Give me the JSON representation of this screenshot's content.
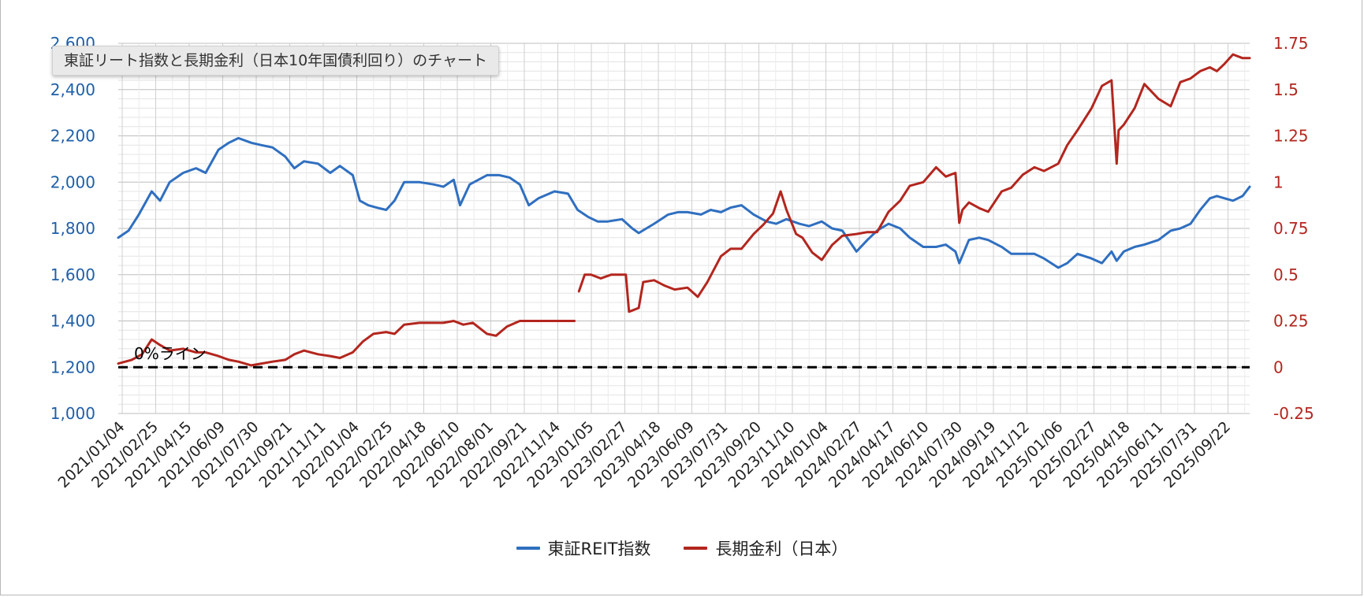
{
  "tooltip": "東証リート指数と長期金利（日本10年国債利回り）のチャート",
  "annotation": "0%ライン",
  "colors": {
    "reit": "#2f6fc0",
    "jgb": "#b3261e",
    "grid": "#d6d6d6",
    "zero": "#000000"
  },
  "chart_data": {
    "type": "line",
    "dual_axis": true,
    "grid": true,
    "legend_position": "bottom",
    "x_ticks": [
      "2021/01/04",
      "2021/02/25",
      "2021/04/15",
      "2021/06/09",
      "2021/07/30",
      "2021/09/21",
      "2021/11/11",
      "2022/01/04",
      "2022/02/25",
      "2022/04/18",
      "2022/06/10",
      "2022/08/01",
      "2022/09/21",
      "2022/11/14",
      "2023/01/05",
      "2023/02/27",
      "2023/04/18",
      "2023/06/09",
      "2023/07/31",
      "2023/09/20",
      "2023/11/10",
      "2024/01/04",
      "2024/02/27",
      "2024/04/17",
      "2024/06/10",
      "2024/07/30",
      "2024/09/19",
      "2024/11/12",
      "2025/01/06",
      "2025/02/27",
      "2025/04/18",
      "2025/06/11",
      "2025/07/31",
      "2025/09/22"
    ],
    "x_range": [
      "2021/01/04",
      "2025/10/31"
    ],
    "y_left": {
      "min": 1000,
      "max": 2600,
      "ticks": [
        "1,000",
        "1,200",
        "1,400",
        "1,600",
        "1,800",
        "2,000",
        "2,200",
        "2,400",
        "2,600"
      ]
    },
    "y_right": {
      "min": -0.25,
      "max": 1.75,
      "ticks": [
        "-0.25",
        "0",
        "0.25",
        "0.5",
        "0.75",
        "1",
        "1.25",
        "1.5",
        "1.75"
      ]
    },
    "reference_line": {
      "axis": "right",
      "value": 0
    },
    "series": [
      {
        "name": "東証REIT指数",
        "axis": "left",
        "points": [
          [
            "2021/01/04",
            1760
          ],
          [
            "2021/01/20",
            1790
          ],
          [
            "2021/02/05",
            1860
          ],
          [
            "2021/02/25",
            1960
          ],
          [
            "2021/03/10",
            1920
          ],
          [
            "2021/03/25",
            2000
          ],
          [
            "2021/04/15",
            2040
          ],
          [
            "2021/05/05",
            2060
          ],
          [
            "2021/05/20",
            2040
          ],
          [
            "2021/06/09",
            2140
          ],
          [
            "2021/06/25",
            2170
          ],
          [
            "2021/07/10",
            2190
          ],
          [
            "2021/07/30",
            2170
          ],
          [
            "2021/08/15",
            2160
          ],
          [
            "2021/09/01",
            2150
          ],
          [
            "2021/09/21",
            2110
          ],
          [
            "2021/10/05",
            2060
          ],
          [
            "2021/10/20",
            2090
          ],
          [
            "2021/11/11",
            2080
          ],
          [
            "2021/11/30",
            2040
          ],
          [
            "2021/12/15",
            2070
          ],
          [
            "2022/01/04",
            2030
          ],
          [
            "2022/01/15",
            1920
          ],
          [
            "2022/01/28",
            1900
          ],
          [
            "2022/02/10",
            1890
          ],
          [
            "2022/02/25",
            1880
          ],
          [
            "2022/03/10",
            1920
          ],
          [
            "2022/03/25",
            2000
          ],
          [
            "2022/04/18",
            2000
          ],
          [
            "2022/05/10",
            1990
          ],
          [
            "2022/05/25",
            1980
          ],
          [
            "2022/06/10",
            2010
          ],
          [
            "2022/06/20",
            1900
          ],
          [
            "2022/07/05",
            1990
          ],
          [
            "2022/08/01",
            2030
          ],
          [
            "2022/08/20",
            2030
          ],
          [
            "2022/09/05",
            2020
          ],
          [
            "2022/09/21",
            1990
          ],
          [
            "2022/10/05",
            1900
          ],
          [
            "2022/10/20",
            1930
          ],
          [
            "2022/11/14",
            1960
          ],
          [
            "2022/12/05",
            1950
          ],
          [
            "2022/12/20",
            1880
          ],
          [
            "2023/01/05",
            1850
          ],
          [
            "2023/01/20",
            1830
          ],
          [
            "2023/02/05",
            1830
          ],
          [
            "2023/02/27",
            1840
          ],
          [
            "2023/03/15",
            1800
          ],
          [
            "2023/03/25",
            1780
          ],
          [
            "2023/04/18",
            1820
          ],
          [
            "2023/05/10",
            1860
          ],
          [
            "2023/05/25",
            1870
          ],
          [
            "2023/06/09",
            1870
          ],
          [
            "2023/06/30",
            1860
          ],
          [
            "2023/07/15",
            1880
          ],
          [
            "2023/07/31",
            1870
          ],
          [
            "2023/08/15",
            1890
          ],
          [
            "2023/09/01",
            1900
          ],
          [
            "2023/09/20",
            1860
          ],
          [
            "2023/10/10",
            1830
          ],
          [
            "2023/10/25",
            1820
          ],
          [
            "2023/11/10",
            1840
          ],
          [
            "2023/11/30",
            1820
          ],
          [
            "2023/12/15",
            1810
          ],
          [
            "2024/01/04",
            1830
          ],
          [
            "2024/01/20",
            1800
          ],
          [
            "2024/02/05",
            1790
          ],
          [
            "2024/02/27",
            1700
          ],
          [
            "2024/03/15",
            1750
          ],
          [
            "2024/03/30",
            1790
          ],
          [
            "2024/04/17",
            1820
          ],
          [
            "2024/05/05",
            1800
          ],
          [
            "2024/05/20",
            1760
          ],
          [
            "2024/06/10",
            1720
          ],
          [
            "2024/06/30",
            1720
          ],
          [
            "2024/07/15",
            1730
          ],
          [
            "2024/07/30",
            1700
          ],
          [
            "2024/08/05",
            1650
          ],
          [
            "2024/08/20",
            1750
          ],
          [
            "2024/09/05",
            1760
          ],
          [
            "2024/09/19",
            1750
          ],
          [
            "2024/10/10",
            1720
          ],
          [
            "2024/10/25",
            1690
          ],
          [
            "2024/11/12",
            1690
          ],
          [
            "2024/11/30",
            1690
          ],
          [
            "2024/12/15",
            1670
          ],
          [
            "2025/01/06",
            1630
          ],
          [
            "2025/01/20",
            1650
          ],
          [
            "2025/02/05",
            1690
          ],
          [
            "2025/02/27",
            1670
          ],
          [
            "2025/03/15",
            1650
          ],
          [
            "2025/03/30",
            1700
          ],
          [
            "2025/04/07",
            1660
          ],
          [
            "2025/04/18",
            1700
          ],
          [
            "2025/05/05",
            1720
          ],
          [
            "2025/05/20",
            1730
          ],
          [
            "2025/06/11",
            1750
          ],
          [
            "2025/06/30",
            1790
          ],
          [
            "2025/07/15",
            1800
          ],
          [
            "2025/07/31",
            1820
          ],
          [
            "2025/08/15",
            1880
          ],
          [
            "2025/08/30",
            1930
          ],
          [
            "2025/09/10",
            1940
          ],
          [
            "2025/09/22",
            1930
          ],
          [
            "2025/10/05",
            1920
          ],
          [
            "2025/10/20",
            1940
          ],
          [
            "2025/10/31",
            1980
          ]
        ]
      },
      {
        "name": "長期金利（日本）",
        "axis": "right",
        "points": [
          [
            "2021/01/04",
            0.02
          ],
          [
            "2021/01/25",
            0.04
          ],
          [
            "2021/02/10",
            0.07
          ],
          [
            "2021/02/25",
            0.15
          ],
          [
            "2021/03/10",
            0.12
          ],
          [
            "2021/03/25",
            0.09
          ],
          [
            "2021/04/15",
            0.1
          ],
          [
            "2021/05/05",
            0.08
          ],
          [
            "2021/05/20",
            0.08
          ],
          [
            "2021/06/09",
            0.06
          ],
          [
            "2021/06/25",
            0.04
          ],
          [
            "2021/07/10",
            0.03
          ],
          [
            "2021/07/30",
            0.01
          ],
          [
            "2021/08/15",
            0.02
          ],
          [
            "2021/09/01",
            0.03
          ],
          [
            "2021/09/21",
            0.04
          ],
          [
            "2021/10/05",
            0.07
          ],
          [
            "2021/10/20",
            0.09
          ],
          [
            "2021/11/11",
            0.07
          ],
          [
            "2021/11/30",
            0.06
          ],
          [
            "2021/12/15",
            0.05
          ],
          [
            "2022/01/04",
            0.08
          ],
          [
            "2022/01/20",
            0.14
          ],
          [
            "2022/02/05",
            0.18
          ],
          [
            "2022/02/25",
            0.19
          ],
          [
            "2022/03/10",
            0.18
          ],
          [
            "2022/03/25",
            0.23
          ],
          [
            "2022/04/18",
            0.24
          ],
          [
            "2022/05/10",
            0.24
          ],
          [
            "2022/05/25",
            0.24
          ],
          [
            "2022/06/10",
            0.25
          ],
          [
            "2022/06/25",
            0.23
          ],
          [
            "2022/07/10",
            0.24
          ],
          [
            "2022/08/01",
            0.18
          ],
          [
            "2022/08/15",
            0.17
          ],
          [
            "2022/09/01",
            0.22
          ],
          [
            "2022/09/21",
            0.25
          ],
          [
            "2022/10/10",
            0.25
          ],
          [
            "2022/10/25",
            0.25
          ],
          [
            "2022/11/14",
            0.25
          ],
          [
            "2022/12/05",
            0.25
          ],
          [
            "2022/12/15",
            0.25
          ],
          null,
          [
            "2022/12/22",
            0.41
          ],
          [
            "2022/12/31",
            0.5
          ],
          [
            "2023/01/10",
            0.5
          ],
          [
            "2023/01/25",
            0.48
          ],
          [
            "2023/02/10",
            0.5
          ],
          [
            "2023/02/27",
            0.5
          ],
          [
            "2023/03/05",
            0.5
          ],
          [
            "2023/03/10",
            0.3
          ],
          [
            "2023/03/25",
            0.32
          ],
          [
            "2023/04/01",
            0.46
          ],
          [
            "2023/04/18",
            0.47
          ],
          [
            "2023/05/05",
            0.44
          ],
          [
            "2023/05/20",
            0.42
          ],
          [
            "2023/06/09",
            0.43
          ],
          [
            "2023/06/25",
            0.38
          ],
          [
            "2023/07/10",
            0.46
          ],
          [
            "2023/07/31",
            0.6
          ],
          [
            "2023/08/15",
            0.64
          ],
          [
            "2023/09/01",
            0.64
          ],
          [
            "2023/09/20",
            0.72
          ],
          [
            "2023/10/05",
            0.77
          ],
          [
            "2023/10/20",
            0.83
          ],
          [
            "2023/11/01",
            0.95
          ],
          [
            "2023/11/10",
            0.85
          ],
          [
            "2023/11/25",
            0.72
          ],
          [
            "2023/12/05",
            0.7
          ],
          [
            "2023/12/20",
            0.62
          ],
          [
            "2024/01/04",
            0.58
          ],
          [
            "2024/01/20",
            0.66
          ],
          [
            "2024/02/05",
            0.71
          ],
          [
            "2024/02/27",
            0.72
          ],
          [
            "2024/03/15",
            0.73
          ],
          [
            "2024/03/30",
            0.73
          ],
          [
            "2024/04/17",
            0.84
          ],
          [
            "2024/05/05",
            0.9
          ],
          [
            "2024/05/20",
            0.98
          ],
          [
            "2024/06/10",
            1.0
          ],
          [
            "2024/06/30",
            1.08
          ],
          [
            "2024/07/15",
            1.03
          ],
          [
            "2024/07/30",
            1.05
          ],
          [
            "2024/08/05",
            0.78
          ],
          [
            "2024/08/10",
            0.85
          ],
          [
            "2024/08/20",
            0.89
          ],
          [
            "2024/09/05",
            0.86
          ],
          [
            "2024/09/19",
            0.84
          ],
          [
            "2024/10/10",
            0.95
          ],
          [
            "2024/10/25",
            0.97
          ],
          [
            "2024/11/12",
            1.04
          ],
          [
            "2024/11/30",
            1.08
          ],
          [
            "2024/12/15",
            1.06
          ],
          [
            "2025/01/06",
            1.1
          ],
          [
            "2025/01/20",
            1.2
          ],
          [
            "2025/02/05",
            1.28
          ],
          [
            "2025/02/27",
            1.4
          ],
          [
            "2025/03/15",
            1.52
          ],
          [
            "2025/03/30",
            1.55
          ],
          [
            "2025/04/07",
            1.1
          ],
          [
            "2025/04/10",
            1.28
          ],
          [
            "2025/04/18",
            1.31
          ],
          [
            "2025/05/05",
            1.4
          ],
          [
            "2025/05/20",
            1.53
          ],
          [
            "2025/06/11",
            1.45
          ],
          [
            "2025/06/30",
            1.41
          ],
          [
            "2025/07/15",
            1.54
          ],
          [
            "2025/07/31",
            1.56
          ],
          [
            "2025/08/15",
            1.6
          ],
          [
            "2025/08/30",
            1.62
          ],
          [
            "2025/09/10",
            1.6
          ],
          [
            "2025/09/22",
            1.64
          ],
          [
            "2025/10/05",
            1.69
          ],
          [
            "2025/10/20",
            1.67
          ],
          [
            "2025/10/31",
            1.67
          ]
        ]
      }
    ]
  }
}
